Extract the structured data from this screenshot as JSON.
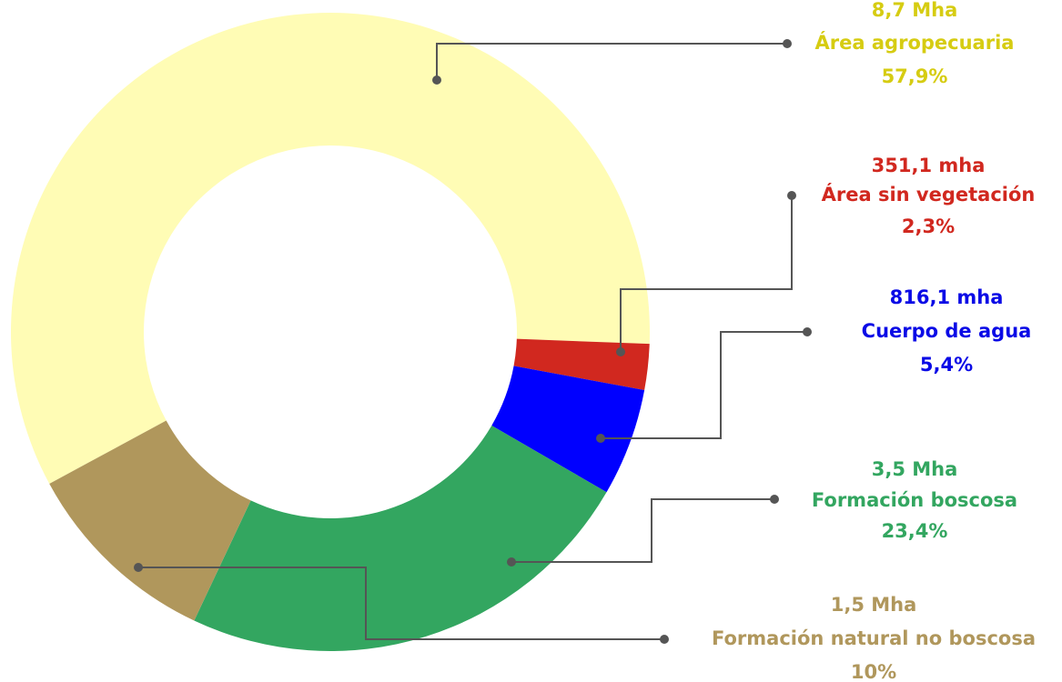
{
  "chart_data": {
    "type": "donut",
    "categories": [
      "Área agropecuaria",
      "Área sin vegetación",
      "Cuerpo de agua",
      "Formación boscosa",
      "Formación natural no boscosa"
    ],
    "values": [
      57.9,
      2.3,
      5.4,
      23.4,
      10
    ],
    "value_labels": [
      "57,9%",
      "2,3%",
      "5,4%",
      "23,4%",
      "10%"
    ],
    "area_labels": [
      "8,7 Mha",
      "351,1 mha",
      "816,1 mha",
      "3,5 Mha",
      "1,5 Mha"
    ],
    "colors": [
      "#fffcb5",
      "#d1281f",
      "#0000ff",
      "#33a660",
      "#b0975c"
    ],
    "label_colors": [
      "#d6cc12",
      "#d1281f",
      "#0a0ae6",
      "#33a660",
      "#b0975c"
    ]
  }
}
